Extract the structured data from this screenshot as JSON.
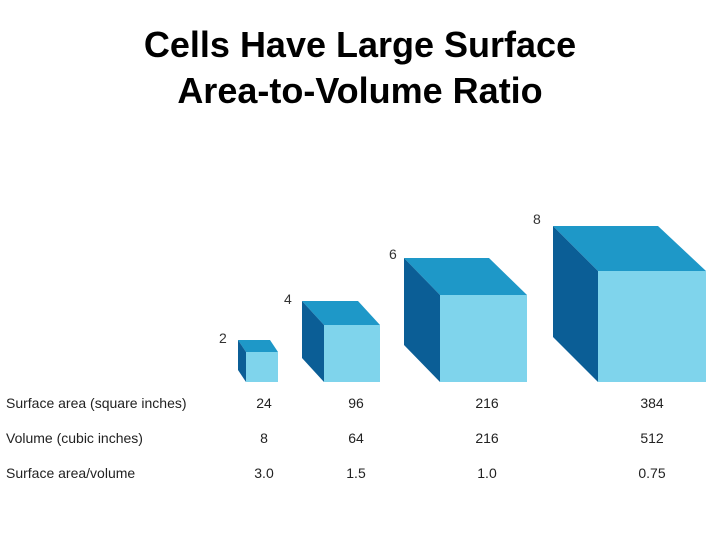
{
  "title": {
    "line1": "Cells Have Large Surface",
    "line2": "Area-to-Volume Ratio"
  },
  "cubes": [
    {
      "side": "2",
      "surface_area": "24",
      "volume": "8",
      "ratio": "3.0"
    },
    {
      "side": "4",
      "surface_area": "96",
      "volume": "64",
      "ratio": "1.5"
    },
    {
      "side": "6",
      "surface_area": "216",
      "volume": "216",
      "ratio": "1.0"
    },
    {
      "side": "8",
      "surface_area": "384",
      "volume": "512",
      "ratio": "0.75"
    }
  ],
  "rows": {
    "surface_area": "Surface area (square inches)",
    "volume": "Volume (cubic inches)",
    "ratio": "Surface area/volume"
  },
  "colors": {
    "front": "#7fd4ec",
    "top": "#1e98c8",
    "side": "#0b5e96",
    "edge": "#0a4f80"
  }
}
